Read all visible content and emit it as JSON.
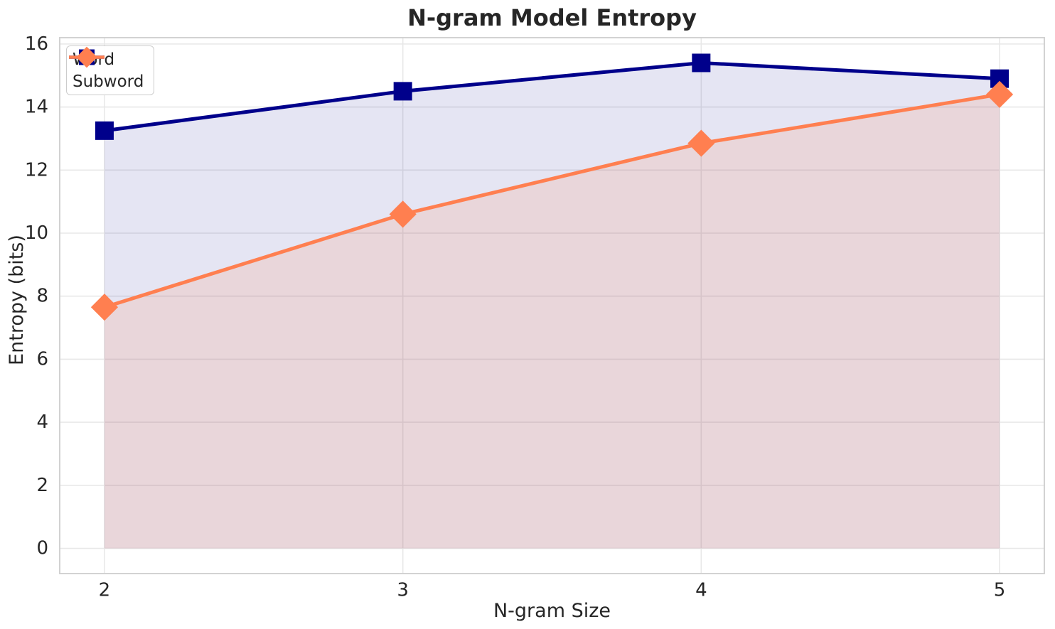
{
  "chart_data": {
    "type": "line",
    "title": "N-gram Model Entropy",
    "xlabel": "N-gram Size",
    "ylabel": "Entropy (bits)",
    "x": [
      2,
      3,
      4,
      5
    ],
    "series": [
      {
        "name": "Word",
        "values": [
          13.25,
          14.5,
          15.4,
          14.9
        ],
        "color": "#00008B",
        "marker": "square",
        "fill_to_zero": true,
        "fill_opacity": 0.1
      },
      {
        "name": "Subword",
        "values": [
          7.65,
          10.6,
          12.85,
          14.4
        ],
        "color": "#FF7F50",
        "marker": "diamond",
        "fill_to_zero": true,
        "fill_opacity": 0.15
      }
    ],
    "xticks": [
      2,
      3,
      4,
      5
    ],
    "yticks": [
      0,
      2,
      4,
      6,
      8,
      10,
      12,
      14,
      16
    ],
    "xlim": [
      1.85,
      5.15
    ],
    "ylim": [
      -0.8,
      16.2
    ],
    "grid": true,
    "legend_position": "upper left"
  },
  "colors": {
    "word_series": "#00008B",
    "subword_series": "#FF7F50",
    "grid": "#e8e8e8",
    "spine": "#d2d2d2",
    "text": "#262626",
    "background": "#ffffff"
  }
}
